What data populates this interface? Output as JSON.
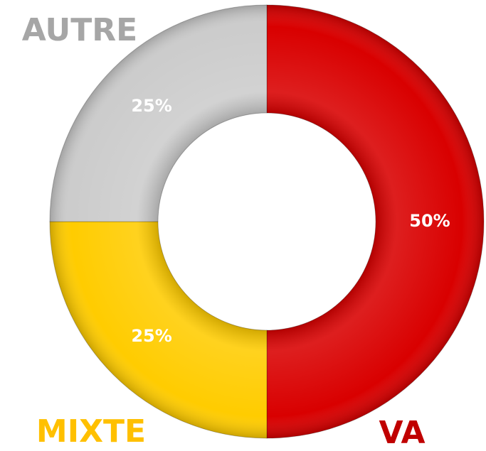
{
  "chart_data": {
    "type": "donut",
    "categories": [
      "VA",
      "MIXTE",
      "AUTRE"
    ],
    "values": [
      50,
      25,
      25
    ],
    "value_labels": [
      "50%",
      "25%",
      "25%"
    ],
    "colors": [
      "#d90000",
      "#ffcc00",
      "#cccccc"
    ],
    "label_colors": [
      "#c00000",
      "#ffc000",
      "#a6a6a6"
    ]
  }
}
